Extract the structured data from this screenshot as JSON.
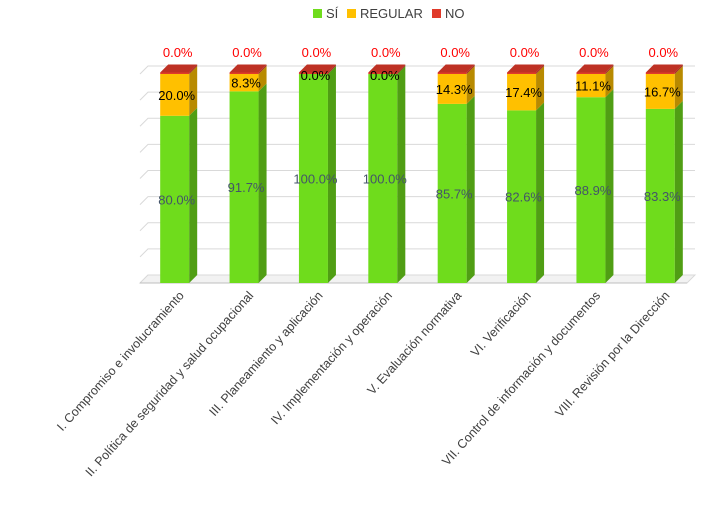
{
  "chart_data": {
    "type": "bar",
    "stacked": true,
    "three_d": true,
    "categories": [
      "I. Compromiso e involucramiento",
      "II. Política de seguridad y salud ocupacional",
      "III. Planeamiento y aplicación",
      "IV. Implementación y operación",
      "V. Evaluación normativa",
      "VI. Verificación",
      "VII. Control de información y documentos",
      "VIII. Revisión por la Dirección"
    ],
    "series": [
      {
        "name": "SÍ",
        "color": "#6fdc1c",
        "values": [
          80.0,
          91.7,
          100.0,
          100.0,
          85.7,
          82.6,
          88.9,
          83.3
        ],
        "labels": [
          "80.0%",
          "91.7%",
          "100.0%",
          "100.0%",
          "85.7%",
          "82.6%",
          "88.9%",
          "83.3%"
        ]
      },
      {
        "name": "REGULAR",
        "color": "#ffc000",
        "values": [
          20.0,
          8.3,
          0.0,
          0.0,
          14.3,
          17.4,
          11.1,
          16.7
        ],
        "labels": [
          "20.0%",
          "8.3%",
          "0.0%",
          "0.0%",
          "14.3%",
          "17.4%",
          "11.1%",
          "16.7%"
        ]
      },
      {
        "name": "NO",
        "color": "#e03a2a",
        "values": [
          0.0,
          0.0,
          0.0,
          0.0,
          0.0,
          0.0,
          0.0,
          0.0
        ],
        "labels": [
          "0.0%",
          "0.0%",
          "0.0%",
          "0.0%",
          "0.0%",
          "0.0%",
          "0.0%",
          "0.0%"
        ]
      }
    ],
    "ylim": [
      0,
      100
    ],
    "legend_position": "top",
    "grid": true
  }
}
